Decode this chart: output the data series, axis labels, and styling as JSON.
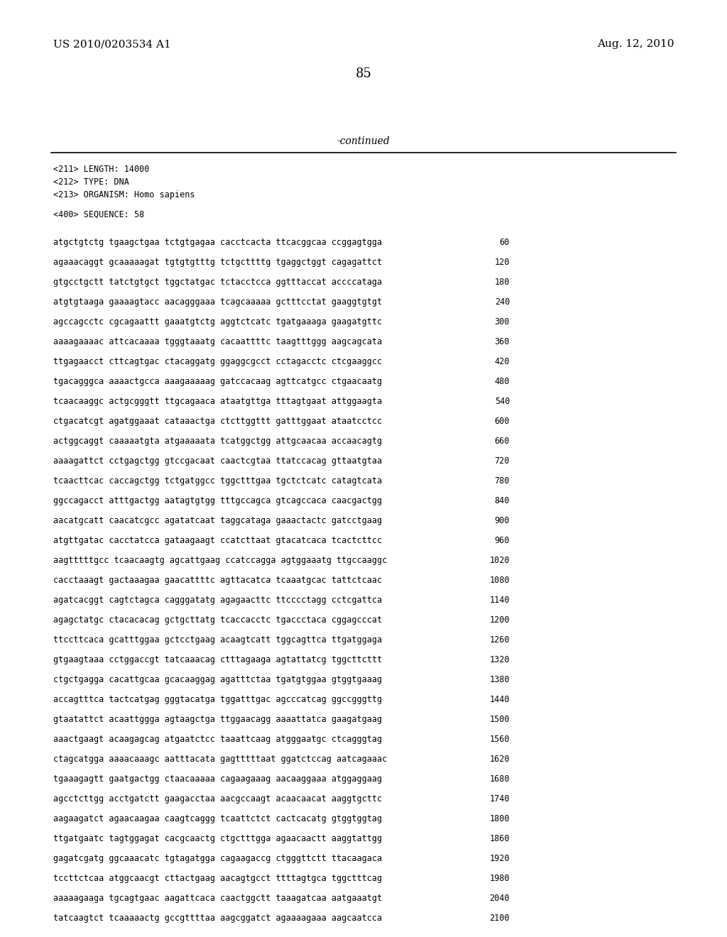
{
  "header_left": "US 2010/0203534 A1",
  "header_right": "Aug. 12, 2010",
  "page_number": "85",
  "continued_text": "-continued",
  "meta_lines": [
    "<211> LENGTH: 14000",
    "<212> TYPE: DNA",
    "<213> ORGANISM: Homo sapiens"
  ],
  "sequence_label": "<400> SEQUENCE: 58",
  "sequence_lines": [
    [
      "atgctgtctg tgaagctgaa tctgtgagaa cacctcacta ttcacggcaa ccggagtgga",
      "60"
    ],
    [
      "agaaacaggt gcaaaaagat tgtgtgtttg tctgcttttg tgaggctggt cagagattct",
      "120"
    ],
    [
      "gtgcctgctt tatctgtgct tggctatgac tctacctcca ggtttaccat accccataga",
      "180"
    ],
    [
      "atgtgtaaga gaaaagtacc aacagggaaa tcagcaaaaa gctttcctat gaaggtgtgt",
      "240"
    ],
    [
      "agccagcctc cgcagaattt gaaatgtctg aggtctcatc tgatgaaaga gaagatgttc",
      "300"
    ],
    [
      "aaaagaaaac attcacaaaa tgggtaaatg cacaattttc taagtttggg aagcagcata",
      "360"
    ],
    [
      "ttgagaacct cttcagtgac ctacaggatg ggaggcgcct cctagacctc ctcgaaggcc",
      "420"
    ],
    [
      "tgacagggca aaaactgcca aaagaaaaag gatccacaag agttcatgcc ctgaacaatg",
      "480"
    ],
    [
      "tcaacaaggc actgcgggtt ttgcagaaca ataatgttga tttagtgaat attggaagta",
      "540"
    ],
    [
      "ctgacatcgt agatggaaat cataaactga ctcttggttt gatttggaat ataatcctcc",
      "600"
    ],
    [
      "actggcaggt caaaaatgta atgaaaaata tcatggctgg attgcaacaa accaacagtg",
      "660"
    ],
    [
      "aaaagattct cctgagctgg gtccgacaat caactcgtaa ttatccacag gttaatgtaa",
      "720"
    ],
    [
      "tcaacttcac caccagctgg tctgatggcc tggctttgaa tgctctcatc catagtcata",
      "780"
    ],
    [
      "ggccagacct atttgactgg aatagtgtgg tttgccagca gtcagccaca caacgactgg",
      "840"
    ],
    [
      "aacatgcatt caacatcgcc agatatcaat taggcataga gaaactactc gatcctgaag",
      "900"
    ],
    [
      "atgttgatac cacctatcca gataagaagt ccatcttaat gtacatcaca tcactcttcc",
      "960"
    ],
    [
      "aagtttttgcc tcaacaagtg agcattgaag ccatccagga agtggaaatg ttgccaaggc",
      "1020"
    ],
    [
      "cacctaaagt gactaaagaa gaacattttc agttacatca tcaaatgcac tattctcaac",
      "1080"
    ],
    [
      "agatcacggt cagtctagca cagggatatg agagaacttc ttcccctagg cctcgattca",
      "1140"
    ],
    [
      "agagctatgc ctacacacag gctgcttatg tcaccacctc tgaccctaca cggagcccat",
      "1200"
    ],
    [
      "ttccttcaca gcatttggaa gctcctgaag acaagtcatt tggcagttca ttgatggaga",
      "1260"
    ],
    [
      "gtgaagtaaa cctggaccgt tatcaaacag ctttagaaga agtattatcg tggcttcttt",
      "1320"
    ],
    [
      "ctgctgagga cacattgcaa gcacaaggag agatttctaa tgatgtggaa gtggtgaaag",
      "1380"
    ],
    [
      "accagtttca tactcatgag gggtacatga tggatttgac agcccatcag ggccgggttg",
      "1440"
    ],
    [
      "gtaatattct acaattggga agtaagctga ttggaacagg aaaattatca gaagatgaag",
      "1500"
    ],
    [
      "aaactgaagt acaagagcag atgaatctcc taaattcaag atgggaatgc ctcagggtag",
      "1560"
    ],
    [
      "ctagcatgga aaaacaaagc aatttacata gagtttttaat ggatctccag aatcagaaac",
      "1620"
    ],
    [
      "tgaaagagtt gaatgactgg ctaacaaaaa cagaagaaag aacaaggaaa atggaggaag",
      "1680"
    ],
    [
      "agcctcttgg acctgatctt gaagacctaa aacgccaagt acaacaacat aaggtgcttc",
      "1740"
    ],
    [
      "aagaagatct agaacaagaa caagtcaggg tcaattctct cactcacatg gtggtggtag",
      "1800"
    ],
    [
      "ttgatgaatc tagtggagat cacgcaactg ctgctttgga agaacaactt aaggtattgg",
      "1860"
    ],
    [
      "gagatcgatg ggcaaacatc tgtagatgga cagaagaccg ctgggttctt ttacaagaca",
      "1920"
    ],
    [
      "tccttctcaa atggcaacgt cttactgaag aacagtgcct ttttagtgca tggctttcag",
      "1980"
    ],
    [
      "aaaaagaaga tgcagtgaac aagattcaca caactggctt taaagatcaa aatgaaatgt",
      "2040"
    ],
    [
      "tatcaagtct tcaaaaactg gccgttttaa aagcggatct agaaaagaaa aagcaatcca",
      "2100"
    ]
  ]
}
